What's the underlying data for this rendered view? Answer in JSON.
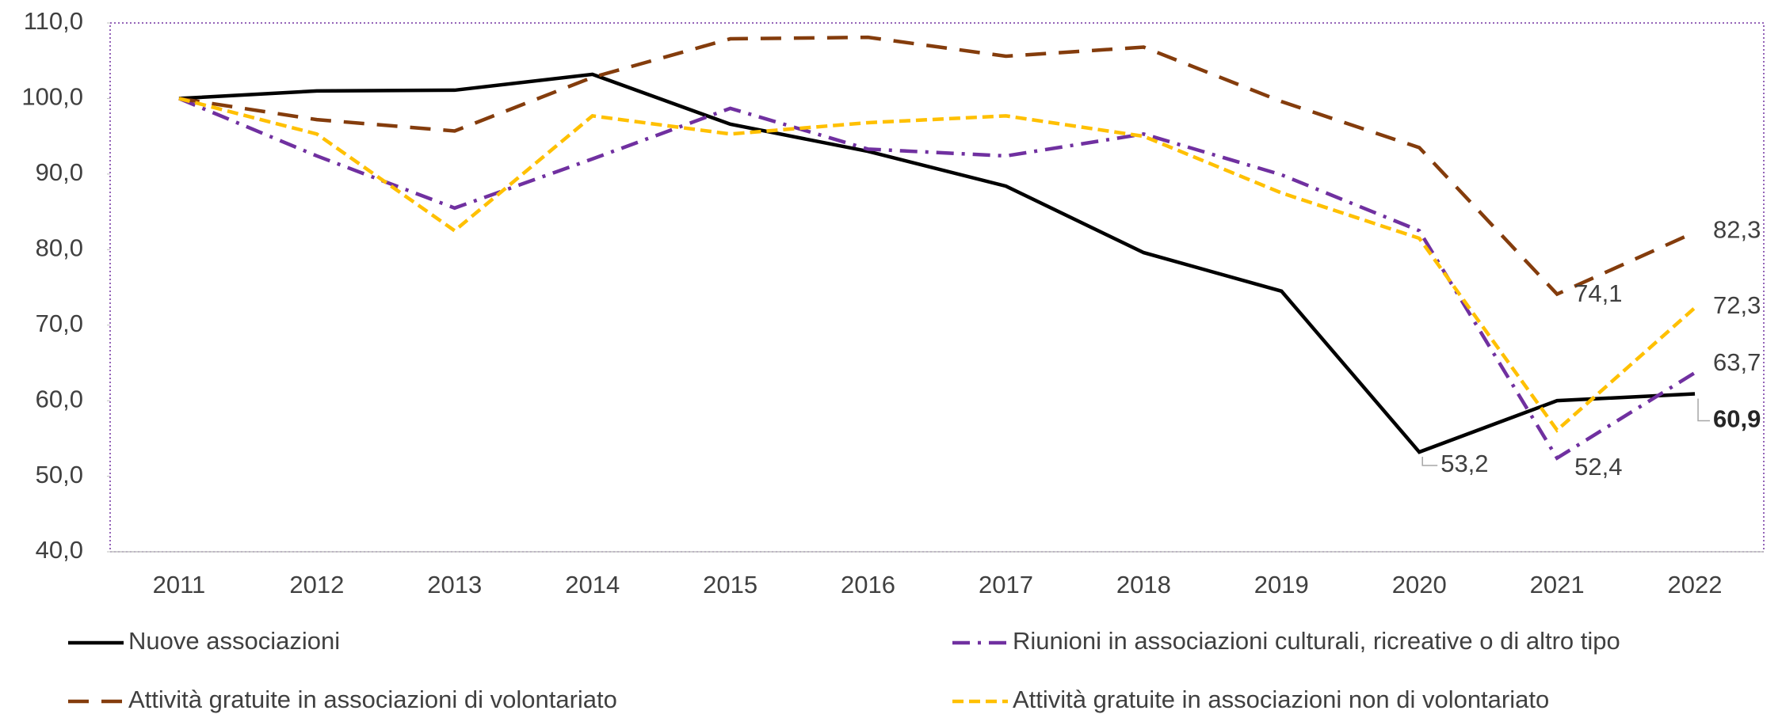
{
  "chart_data": {
    "type": "line",
    "categories": [
      "2011",
      "2012",
      "2013",
      "2014",
      "2015",
      "2016",
      "2017",
      "2018",
      "2019",
      "2020",
      "2021",
      "2022"
    ],
    "series": [
      {
        "name": "Nuove associazioni",
        "color": "#000000",
        "line_style": "solid",
        "values": [
          100,
          101.0,
          101.1,
          103.2,
          96.6,
          93.0,
          88.4,
          79.6,
          74.5,
          53.2,
          60.0,
          60.9
        ],
        "value_labels": [
          null,
          null,
          null,
          null,
          null,
          null,
          null,
          null,
          null,
          "53,2",
          null,
          "60,9"
        ]
      },
      {
        "name": "Riunioni in associazioni culturali, ricreative o di altro tipo",
        "color": "#7030a0",
        "line_style": "dashdot",
        "values": [
          100,
          92.4,
          85.5,
          92.0,
          98.7,
          93.3,
          92.4,
          95.3,
          89.9,
          82.5,
          52.4,
          63.7
        ],
        "value_labels": [
          null,
          null,
          null,
          null,
          null,
          null,
          null,
          null,
          null,
          null,
          "52,4",
          "63,7"
        ]
      },
      {
        "name": "Attività gratuite in associazioni di volontariato",
        "color": "#843c0c",
        "line_style": "dash",
        "values": [
          100,
          97.2,
          95.7,
          102.8,
          107.9,
          108.1,
          105.6,
          106.8,
          99.6,
          93.5,
          74.1,
          82.3
        ],
        "value_labels": [
          null,
          null,
          null,
          null,
          null,
          null,
          null,
          null,
          null,
          null,
          "74,1",
          "82,3"
        ]
      },
      {
        "name": "Attività gratuite in associazioni non di volontariato",
        "color": "#ffc000",
        "line_style": "shortdash",
        "values": [
          100,
          95.3,
          82.5,
          97.7,
          95.3,
          96.8,
          97.7,
          95.0,
          87.5,
          81.5,
          56.1,
          72.3
        ],
        "value_labels": [
          null,
          null,
          null,
          null,
          null,
          null,
          null,
          null,
          null,
          null,
          null,
          "72,3"
        ]
      }
    ],
    "ylim": [
      40,
      110
    ],
    "yticks": [
      {
        "value": 40,
        "label": "40,0"
      },
      {
        "value": 50,
        "label": "50,0"
      },
      {
        "value": 60,
        "label": "60,0"
      },
      {
        "value": 70,
        "label": "70,0"
      },
      {
        "value": 80,
        "label": "80,0"
      },
      {
        "value": 90,
        "label": "90,0"
      },
      {
        "value": 100,
        "label": "100,0"
      },
      {
        "value": 110,
        "label": "110,0"
      }
    ],
    "grid": false
  }
}
